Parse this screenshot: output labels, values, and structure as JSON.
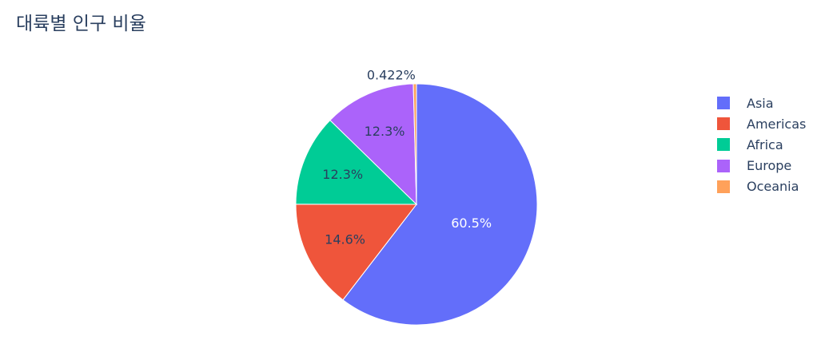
{
  "chart_data": {
    "type": "pie",
    "title": "대륙별 인구 비율",
    "categories": [
      "Asia",
      "Americas",
      "Africa",
      "Europe",
      "Oceania"
    ],
    "values": [
      60.5,
      14.6,
      12.3,
      12.3,
      0.422
    ],
    "labels": [
      "60.5%",
      "14.6%",
      "12.3%",
      "12.3%",
      "0.422%"
    ],
    "colors": [
      "#636efa",
      "#ef553b",
      "#00cc96",
      "#ab63fa",
      "#ffa15a"
    ],
    "legend_position": "right",
    "direction": "clockwise"
  }
}
